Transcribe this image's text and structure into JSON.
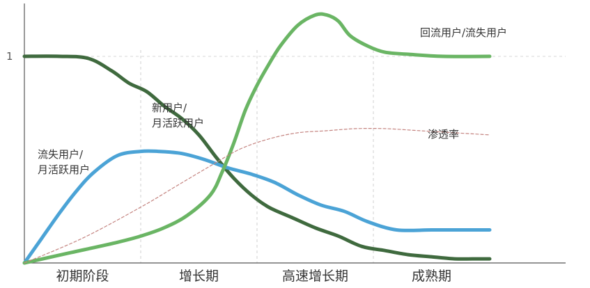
{
  "chart_data": {
    "type": "line",
    "title": "",
    "xlabel": "",
    "ylabel": "",
    "ylim": [
      0,
      1.2
    ],
    "grid": false,
    "stages": [
      "初期阶段",
      "增长期",
      "高速增长期",
      "成熟期"
    ],
    "y_ticks": [
      {
        "value": 1,
        "label": "1"
      }
    ],
    "reference_line": 1,
    "series": [
      {
        "annotation": [
          "新用户/",
          "月活跃用户"
        ],
        "color": "#3f6a3e",
        "style": "solid",
        "x": [
          0,
          0.3,
          0.55,
          0.75,
          0.9,
          1.05,
          1.2,
          1.35,
          1.5,
          1.65,
          1.8,
          1.95,
          2.1,
          2.3,
          2.5,
          2.7,
          2.9,
          3.1,
          3.3,
          3.5,
          3.7,
          3.85,
          4.0
        ],
        "values": [
          1.0,
          1.0,
          0.99,
          0.93,
          0.87,
          0.83,
          0.76,
          0.7,
          0.62,
          0.51,
          0.41,
          0.33,
          0.27,
          0.22,
          0.17,
          0.13,
          0.08,
          0.06,
          0.04,
          0.03,
          0.02,
          0.02,
          0.02
        ]
      },
      {
        "annotation": [
          "流失用户/",
          "月活跃用户"
        ],
        "color": "#4ba3d6",
        "style": "solid",
        "x": [
          0,
          0.15,
          0.3,
          0.45,
          0.6,
          0.8,
          1.0,
          1.15,
          1.35,
          1.55,
          1.75,
          1.95,
          2.15,
          2.35,
          2.55,
          2.75,
          2.95,
          3.2,
          3.5,
          3.8,
          4.0
        ],
        "values": [
          0.0,
          0.12,
          0.24,
          0.35,
          0.44,
          0.52,
          0.54,
          0.54,
          0.53,
          0.5,
          0.46,
          0.43,
          0.39,
          0.33,
          0.28,
          0.25,
          0.2,
          0.16,
          0.16,
          0.16,
          0.16
        ]
      },
      {
        "annotation": [
          "回流用户/流失用户"
        ],
        "color": "#6ab564",
        "style": "solid",
        "x": [
          0,
          0.4,
          0.8,
          1.0,
          1.2,
          1.4,
          1.6,
          1.7,
          1.8,
          1.9,
          2.0,
          2.1,
          2.2,
          2.35,
          2.5,
          2.6,
          2.7,
          2.8,
          2.95,
          3.1,
          3.3,
          3.6,
          4.0
        ],
        "values": [
          0.0,
          0.05,
          0.1,
          0.13,
          0.17,
          0.23,
          0.33,
          0.44,
          0.58,
          0.74,
          0.86,
          0.96,
          1.05,
          1.15,
          1.2,
          1.2,
          1.17,
          1.1,
          1.05,
          1.02,
          1.01,
          1.0,
          1.0
        ]
      },
      {
        "annotation": [
          "渗透率"
        ],
        "color": "#c4837f",
        "style": "dashed",
        "x": [
          0,
          0.5,
          1.0,
          1.3,
          1.6,
          1.85,
          2.1,
          2.35,
          2.6,
          2.85,
          3.1,
          3.4,
          3.7,
          4.0
        ],
        "values": [
          0.0,
          0.12,
          0.27,
          0.37,
          0.47,
          0.55,
          0.6,
          0.63,
          0.64,
          0.65,
          0.65,
          0.64,
          0.63,
          0.62
        ]
      }
    ]
  }
}
